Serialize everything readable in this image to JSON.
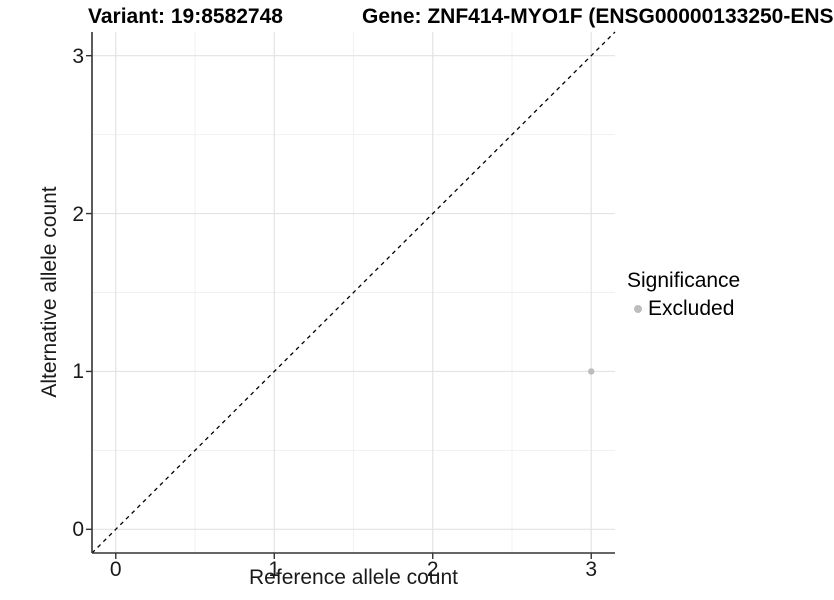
{
  "titles": {
    "left": "Variant: 19:8582748",
    "right": "Gene: ZNF414-MYO1F (ENSG00000133250-ENS"
  },
  "chart_data": {
    "type": "scatter",
    "title_left": "Variant: 19:8582748",
    "title_right": "Gene: ZNF414-MYO1F (ENSG00000133250-ENS",
    "xlabel": "Reference allele count",
    "ylabel": "Alternative allele count",
    "xlim": [
      -0.15,
      3.15
    ],
    "ylim": [
      -0.15,
      3.15
    ],
    "x_ticks": [
      0,
      1,
      2,
      3
    ],
    "y_ticks": [
      0,
      1,
      2,
      3
    ],
    "x_minor_ticks": [
      0.5,
      1.5,
      2.5
    ],
    "y_minor_ticks": [
      0.5,
      1.5,
      2.5
    ],
    "grid": true,
    "identity_line": {
      "style": "dashed",
      "slope": 1,
      "intercept": 0
    },
    "series": [
      {
        "name": "Excluded",
        "color": "#bdbdbd",
        "points": [
          {
            "x": 3,
            "y": 1
          }
        ]
      }
    ],
    "legend": {
      "position": "right",
      "title": "Significance",
      "items": [
        {
          "label": "Excluded",
          "color": "#bdbdbd"
        }
      ]
    }
  },
  "colors": {
    "axis_line": "#333333",
    "tick_mark": "#333333",
    "grid_major": "#e3e3e3",
    "grid_minor": "#f1f1f1",
    "identity_line": "#000000",
    "point": "#bdbdbd",
    "text": "#1a1a1a"
  }
}
